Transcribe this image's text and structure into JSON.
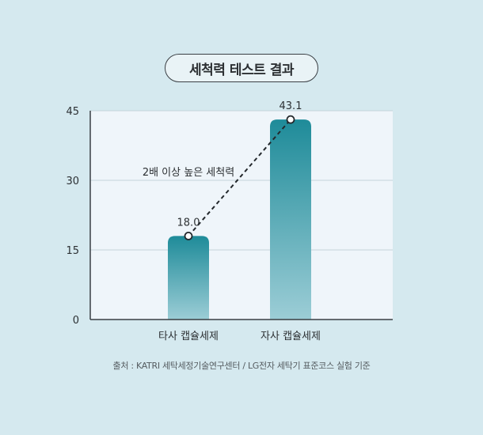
{
  "title": "세척력 테스트 결과",
  "chart_data": {
    "type": "bar",
    "categories": [
      "타사 캡슐세제",
      "자사 캡슐세제"
    ],
    "values": [
      18.0,
      43.1
    ],
    "value_labels": [
      "18.0",
      "43.1"
    ],
    "ylim": [
      0,
      45
    ],
    "yticks": [
      0,
      15,
      30,
      45
    ],
    "grid": true,
    "annotation": "2배 이상 높은 세척력",
    "colors": {
      "bar_top": "#1e8b99",
      "bar_bottom": "#9ccdd6",
      "plot_bg": "#eff5fa",
      "grid": "#c4d2da"
    }
  },
  "footnote": "출처 : KATRI 세탁세정기술연구센터 / LG전자 세탁기 표준코스 실험 기준"
}
